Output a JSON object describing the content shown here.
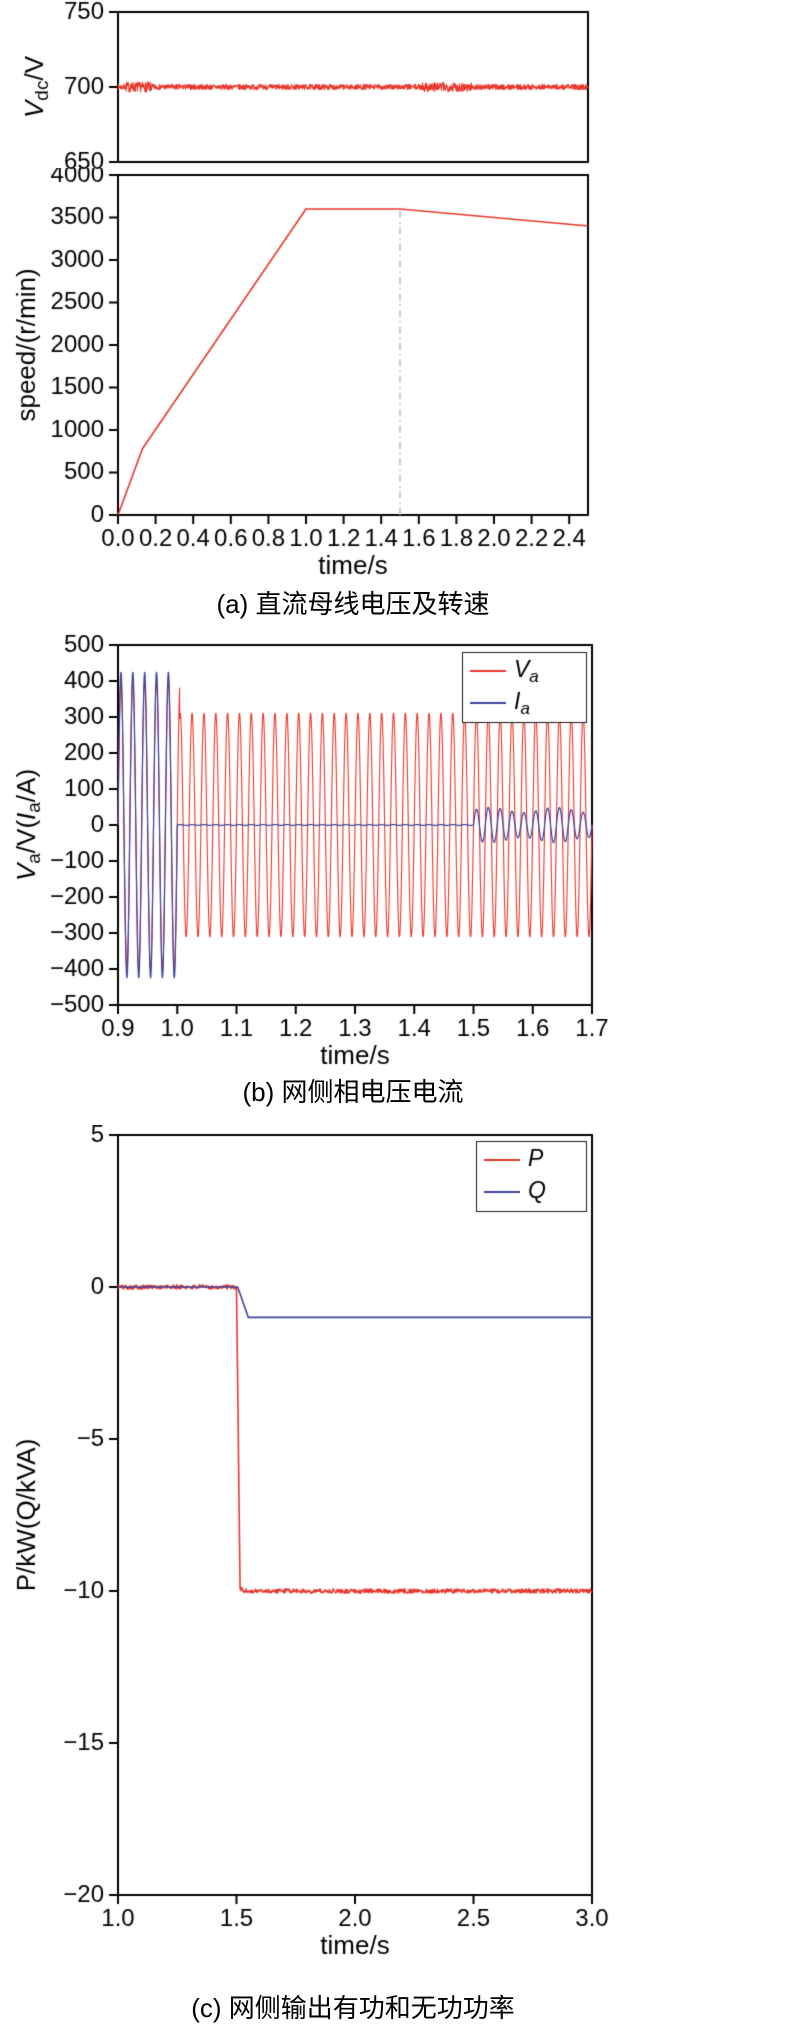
{
  "page": {
    "background": "#ffffff"
  },
  "colors": {
    "red": "#e8372c",
    "blue": "#3d449c",
    "axis": "#000000",
    "text": "#000000",
    "dash_line": "#b5b5b5"
  },
  "captions": {
    "a": "(a) 直流母线电压及转速",
    "b": "(b) 网侧相电压电流",
    "c": "(c) 网侧输出有功和无功功率"
  },
  "chart_data": [
    {
      "id": "vdc",
      "type": "line",
      "title": "",
      "ylabel": "V_{dc}/V",
      "xlabel": "",
      "xlim": [
        0,
        2.5
      ],
      "ylim": [
        650,
        750
      ],
      "ytick_values": [
        650,
        700,
        750
      ],
      "ytick_labels": [
        "650",
        "700",
        "750"
      ],
      "xtick_values": [],
      "xtick_labels": [],
      "series": [
        {
          "name": "Vdc",
          "color": "red",
          "gen": "noisy_const",
          "value": 700,
          "noise": 1.8,
          "width": 1.1,
          "patches": [
            {
              "t": [
                0.04,
                0.18
              ],
              "noise": 3.4
            },
            {
              "t": [
                1.62,
                1.88
              ],
              "noise": 3.2
            }
          ]
        }
      ]
    },
    {
      "id": "speed",
      "type": "line",
      "title": "",
      "ylabel": "speed/(r/min)",
      "xlabel": "time/s",
      "xlim": [
        0,
        2.5
      ],
      "ylim": [
        0,
        4000
      ],
      "ytick_values": [
        0,
        500,
        1000,
        1500,
        2000,
        2500,
        3000,
        3500,
        4000
      ],
      "ytick_labels": [
        "0",
        "500",
        "1000",
        "1500",
        "2000",
        "2500",
        "3000",
        "3500",
        "4000"
      ],
      "xtick_values": [
        0,
        0.2,
        0.4,
        0.6,
        0.8,
        1.0,
        1.2,
        1.4,
        1.6,
        1.8,
        2.0,
        2.2,
        2.4
      ],
      "xtick_labels": [
        "0.0",
        "0.2",
        "0.4",
        "0.6",
        "0.8",
        "1.0",
        "1.2",
        "1.4",
        "1.6",
        "1.8",
        "2.0",
        "2.2",
        "2.4"
      ],
      "annotations": [
        {
          "type": "vline",
          "x": 1.5,
          "y_from": 0,
          "y_to": 3600,
          "color": "dash_line",
          "dash": [
            7,
            4,
            1.5,
            4
          ],
          "width": 1.4
        }
      ],
      "series": [
        {
          "name": "speed",
          "color": "red",
          "gen": "piecewise",
          "width": 1.6,
          "points": [
            [
              0,
              0
            ],
            [
              0.13,
              780
            ],
            [
              1.0,
              3600
            ],
            [
              1.5,
              3600
            ],
            [
              2.5,
              3400
            ]
          ]
        }
      ]
    },
    {
      "id": "grid_wave",
      "type": "line",
      "title": "",
      "ylabel": "V_{a}/V(I_{a}/A)",
      "xlabel": "time/s",
      "xlim": [
        0.9,
        1.7
      ],
      "ylim": [
        -500,
        500
      ],
      "ytick_values": [
        -500,
        -400,
        -300,
        -200,
        -100,
        0,
        100,
        200,
        300,
        400,
        500
      ],
      "ytick_labels": [
        "−500",
        "−400",
        "−300",
        "−200",
        "−100",
        "0",
        "100",
        "200",
        "300",
        "400",
        "500"
      ],
      "xtick_values": [
        0.9,
        1.0,
        1.1,
        1.2,
        1.3,
        1.4,
        1.5,
        1.6,
        1.7
      ],
      "xtick_labels": [
        "0.9",
        "1.0",
        "1.1",
        "1.2",
        "1.3",
        "1.4",
        "1.5",
        "1.6",
        "1.7"
      ],
      "legend": {
        "entries": [
          {
            "label": "V_{a}",
            "color": "red"
          },
          {
            "label": "I_{a}",
            "color": "blue"
          }
        ]
      },
      "series": [
        {
          "name": "Va",
          "color": "red",
          "gen": "sine",
          "freq": 50,
          "phase_t0": 0.9,
          "width": 1.1,
          "segments": [
            {
              "t": [
                0.9,
                1.004
              ],
              "amp": 400
            },
            {
              "t": [
                1.004,
                1.7
              ],
              "amp": 311
            }
          ]
        },
        {
          "name": "Ia",
          "color": "blue",
          "gen": "sine",
          "freq": 50,
          "phase_t0": 0.9,
          "width": 1.2,
          "segments": [
            {
              "t": [
                0.9,
                1.0
              ],
              "amp": 425
            },
            {
              "t": [
                1.0,
                1.5
              ],
              "amp": 1.2
            },
            {
              "t": [
                1.5,
                1.7
              ],
              "amp": 42,
              "wobble": {
                "freq": 9,
                "amp": 7
              }
            }
          ]
        }
      ]
    },
    {
      "id": "power",
      "type": "line",
      "title": "",
      "ylabel": "P/kW(Q/kVA)",
      "xlabel": "time/s",
      "xlim": [
        1.0,
        3.0
      ],
      "ylim": [
        -20,
        5
      ],
      "ytick_values": [
        -20,
        -15,
        -10,
        -5,
        0,
        5
      ],
      "ytick_labels": [
        "−20",
        "−15",
        "−10",
        "−5",
        "0",
        "5"
      ],
      "xtick_values": [
        1.0,
        1.5,
        2.0,
        2.5,
        3.0
      ],
      "xtick_labels": [
        "1.0",
        "1.5",
        "2.0",
        "2.5",
        "3.0"
      ],
      "legend": {
        "entries": [
          {
            "label": "P",
            "color": "red"
          },
          {
            "label": "Q",
            "color": "blue"
          }
        ]
      },
      "series": [
        {
          "name": "P",
          "color": "red",
          "gen": "piecewise",
          "width": 1.6,
          "noise": 0.07,
          "points": [
            [
              1.0,
              0
            ],
            [
              1.5,
              0
            ],
            [
              1.515,
              -9.9
            ],
            [
              1.53,
              -10
            ],
            [
              3.0,
              -10
            ]
          ]
        },
        {
          "name": "Q",
          "color": "blue",
          "gen": "piecewise",
          "width": 1.6,
          "points": [
            [
              1.0,
              0
            ],
            [
              1.505,
              0
            ],
            [
              1.55,
              -1
            ],
            [
              3.0,
              -1
            ]
          ]
        }
      ]
    }
  ]
}
